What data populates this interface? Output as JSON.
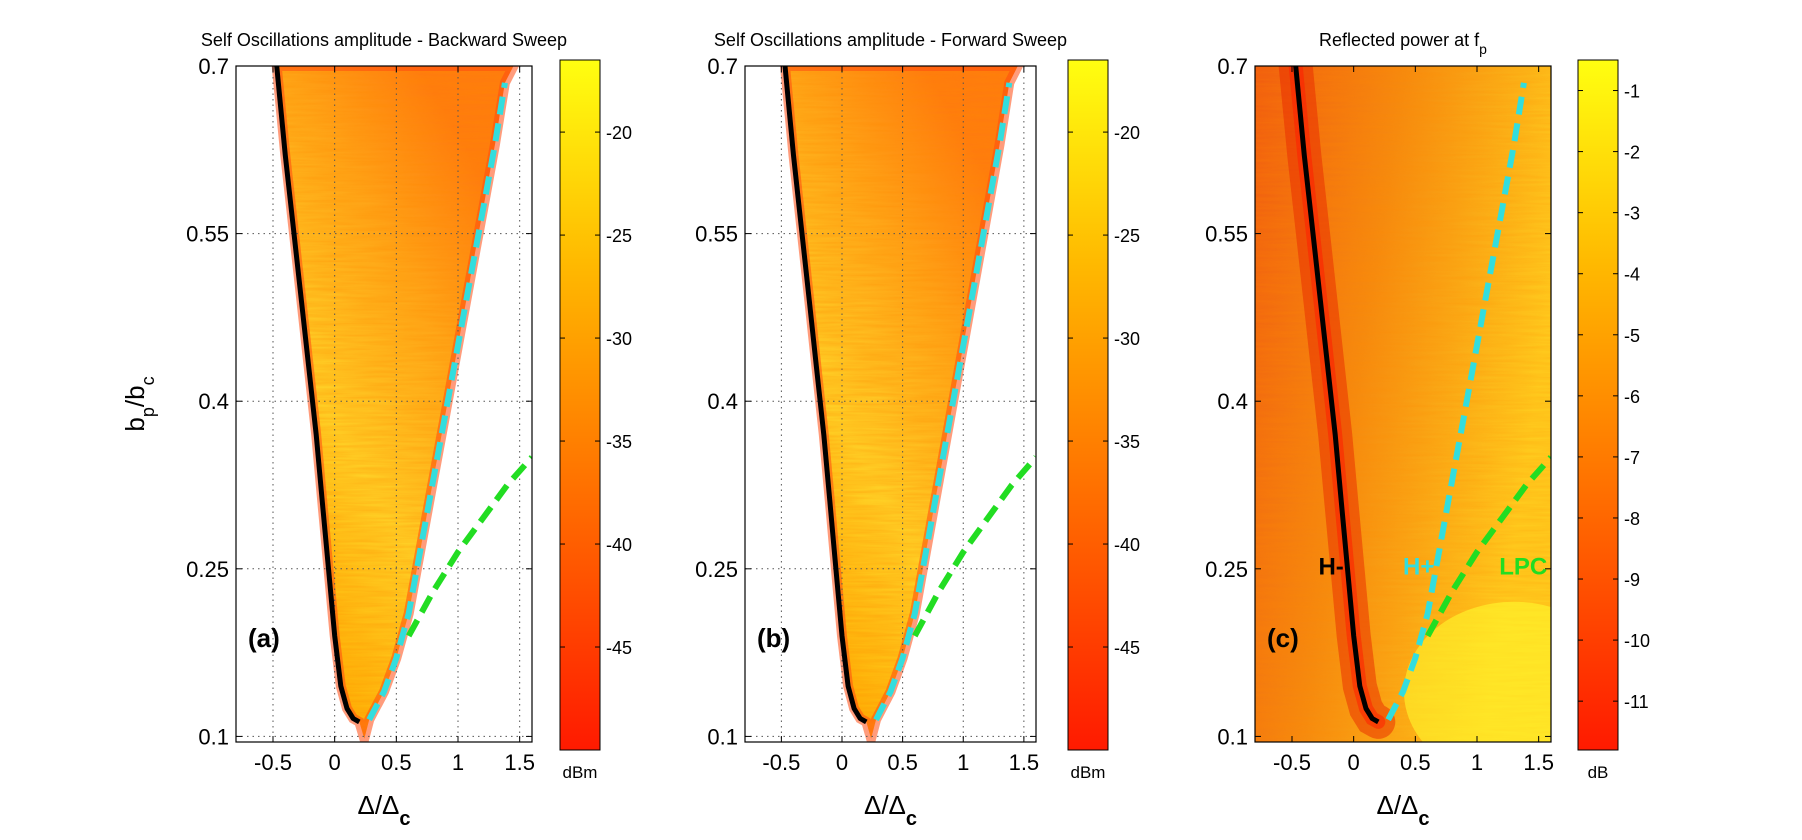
{
  "chart_data": [
    {
      "type": "heatmap",
      "panel_label": "(a)",
      "title": "Self Oscillations amplitude - Backward Sweep",
      "xlabel_main": "Δ/Δ",
      "xlabel_sub": "c",
      "ylabel_main": "b",
      "ylabel_sub1": "p",
      "ylabel_mid": "/b",
      "ylabel_sub2": "c",
      "xlim": [
        -0.8,
        1.6
      ],
      "ylim": [
        0.095,
        0.7
      ],
      "xticks": [
        -0.5,
        0,
        0.5,
        1,
        1.5
      ],
      "xtick_labels": [
        "-0.5",
        "0",
        "0.5",
        "1",
        "1.5"
      ],
      "yticks": [
        0.1,
        0.25,
        0.4,
        0.55,
        0.7
      ],
      "ytick_labels": [
        "0.1",
        "0.25",
        "0.4",
        "0.55",
        "0.7"
      ],
      "grid": true,
      "colorbar": {
        "range": [
          -50,
          -16.5
        ],
        "ticks": [
          -45,
          -40,
          -35,
          -30,
          -25,
          -20
        ],
        "tick_labels": [
          "-45",
          "-40",
          "-35",
          "-30",
          "-25",
          "-20"
        ],
        "unit": "dBm",
        "colormap": "autumn (red to yellow)"
      },
      "region": "oscillation region between H- and H+ boundaries, masked outside",
      "series": [
        {
          "name": "H-",
          "color": "#000000",
          "style": "solid",
          "x": [
            -0.47,
            -0.4,
            -0.33,
            -0.27,
            -0.21,
            -0.15,
            -0.1,
            -0.05,
            0.0,
            0.05,
            0.1,
            0.15,
            0.2
          ],
          "y": [
            0.7,
            0.62,
            0.55,
            0.49,
            0.43,
            0.37,
            0.31,
            0.25,
            0.19,
            0.145,
            0.125,
            0.116,
            0.113
          ]
        },
        {
          "name": "H+",
          "color": "#33dddd",
          "style": "dashed",
          "x": [
            0.28,
            0.4,
            0.5,
            0.6,
            0.7,
            0.8,
            0.9,
            1.0,
            1.1,
            1.2,
            1.3,
            1.38
          ],
          "y": [
            0.115,
            0.14,
            0.17,
            0.21,
            0.27,
            0.33,
            0.39,
            0.45,
            0.51,
            0.57,
            0.63,
            0.685
          ]
        },
        {
          "name": "LPC",
          "color": "#22dd22",
          "style": "dashed",
          "x": [
            0.6,
            0.8,
            1.0,
            1.2,
            1.4,
            1.6
          ],
          "y": [
            0.19,
            0.23,
            0.265,
            0.295,
            0.325,
            0.35
          ]
        }
      ]
    },
    {
      "type": "heatmap",
      "panel_label": "(b)",
      "title": "Self Oscillations amplitude - Forward Sweep",
      "xlabel_main": "Δ/Δ",
      "xlabel_sub": "c",
      "xlim": [
        -0.8,
        1.6
      ],
      "ylim": [
        0.095,
        0.7
      ],
      "xticks": [
        -0.5,
        0,
        0.5,
        1,
        1.5
      ],
      "xtick_labels": [
        "-0.5",
        "0",
        "0.5",
        "1",
        "1.5"
      ],
      "yticks": [
        0.1,
        0.25,
        0.4,
        0.55,
        0.7
      ],
      "ytick_labels": [
        "0.1",
        "0.25",
        "0.4",
        "0.55",
        "0.7"
      ],
      "grid": true,
      "colorbar": {
        "range": [
          -50,
          -16.5
        ],
        "ticks": [
          -45,
          -40,
          -35,
          -30,
          -25,
          -20
        ],
        "tick_labels": [
          "-45",
          "-40",
          "-35",
          "-30",
          "-25",
          "-20"
        ],
        "unit": "dBm",
        "colormap": "autumn (red to yellow)"
      },
      "region": "oscillation region between H- and H+ boundaries, masked outside",
      "series": [
        {
          "name": "H-",
          "color": "#000000",
          "style": "solid",
          "x": [
            -0.47,
            -0.4,
            -0.33,
            -0.27,
            -0.21,
            -0.15,
            -0.1,
            -0.05,
            0.0,
            0.05,
            0.1,
            0.15,
            0.2
          ],
          "y": [
            0.7,
            0.62,
            0.55,
            0.49,
            0.43,
            0.37,
            0.31,
            0.25,
            0.19,
            0.145,
            0.125,
            0.116,
            0.113
          ]
        },
        {
          "name": "H+",
          "color": "#33dddd",
          "style": "dashed",
          "x": [
            0.28,
            0.4,
            0.5,
            0.6,
            0.7,
            0.8,
            0.9,
            1.0,
            1.1,
            1.2,
            1.3,
            1.38
          ],
          "y": [
            0.115,
            0.14,
            0.17,
            0.21,
            0.27,
            0.33,
            0.39,
            0.45,
            0.51,
            0.57,
            0.63,
            0.685
          ]
        },
        {
          "name": "LPC",
          "color": "#22dd22",
          "style": "dashed",
          "x": [
            0.6,
            0.8,
            1.0,
            1.2,
            1.4,
            1.6
          ],
          "y": [
            0.19,
            0.23,
            0.265,
            0.295,
            0.325,
            0.35
          ]
        }
      ]
    },
    {
      "type": "heatmap",
      "panel_label": "(c)",
      "title_main": "Reflected power at f",
      "title_sub": "p",
      "xlabel_main": "Δ/Δ",
      "xlabel_sub": "c",
      "xlim": [
        -0.8,
        1.6
      ],
      "ylim": [
        0.095,
        0.7
      ],
      "xticks": [
        -0.5,
        0,
        0.5,
        1,
        1.5
      ],
      "xtick_labels": [
        "-0.5",
        "0",
        "0.5",
        "1",
        "1.5"
      ],
      "yticks": [
        0.1,
        0.25,
        0.4,
        0.55,
        0.7
      ],
      "ytick_labels": [
        "0.1",
        "0.25",
        "0.4",
        "0.55",
        "0.7"
      ],
      "grid": false,
      "colorbar": {
        "range": [
          -11.8,
          -0.5
        ],
        "ticks": [
          -11,
          -10,
          -9,
          -8,
          -7,
          -6,
          -5,
          -4,
          -3,
          -2,
          -1
        ],
        "tick_labels": [
          "-11",
          "-10",
          "-9",
          "-8",
          "-7",
          "-6",
          "-5",
          "-4",
          "-3",
          "-2",
          "-1"
        ],
        "unit": "dB",
        "colormap": "autumn (red to yellow)"
      },
      "region": "full field, dip (red) around H- boundary, brighter at high detuning",
      "curve_labels": [
        "H-",
        "H+",
        "LPC"
      ],
      "series": [
        {
          "name": "H-",
          "color": "#000000",
          "style": "solid",
          "x": [
            -0.47,
            -0.4,
            -0.33,
            -0.27,
            -0.21,
            -0.15,
            -0.1,
            -0.05,
            0.0,
            0.05,
            0.1,
            0.15,
            0.2
          ],
          "y": [
            0.7,
            0.62,
            0.55,
            0.49,
            0.43,
            0.37,
            0.31,
            0.25,
            0.19,
            0.145,
            0.125,
            0.116,
            0.113
          ]
        },
        {
          "name": "H+",
          "color": "#33dddd",
          "style": "dashed",
          "x": [
            0.28,
            0.4,
            0.5,
            0.6,
            0.7,
            0.8,
            0.9,
            1.0,
            1.1,
            1.2,
            1.3,
            1.38
          ],
          "y": [
            0.115,
            0.14,
            0.17,
            0.21,
            0.27,
            0.33,
            0.39,
            0.45,
            0.51,
            0.57,
            0.63,
            0.685
          ]
        },
        {
          "name": "LPC",
          "color": "#22dd22",
          "style": "dashed",
          "x": [
            0.6,
            0.8,
            1.0,
            1.2,
            1.4,
            1.6
          ],
          "y": [
            0.19,
            0.23,
            0.265,
            0.295,
            0.325,
            0.35
          ]
        }
      ]
    }
  ]
}
